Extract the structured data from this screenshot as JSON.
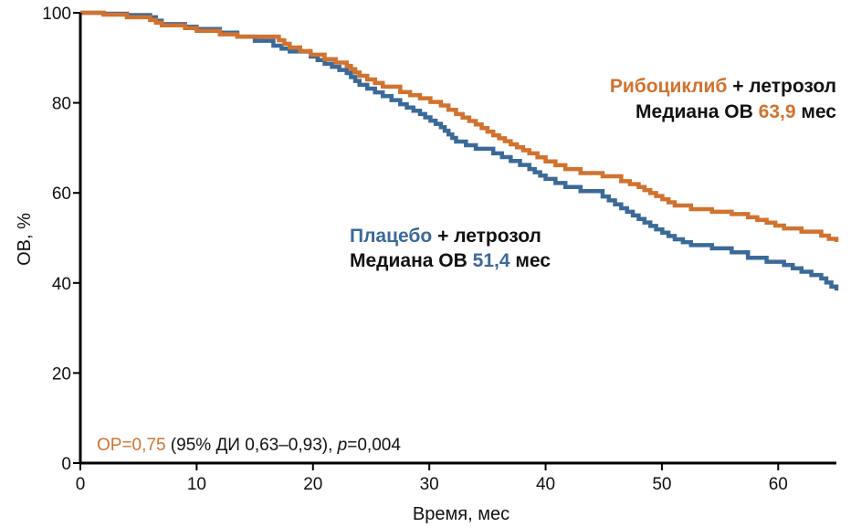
{
  "colors": {
    "ribociclib": "#d2722e",
    "placebo": "#3b6a99",
    "axis": "#000000",
    "text": "#111111"
  },
  "chart_data": {
    "type": "line",
    "subtype": "kaplan-meier step",
    "title": "",
    "xlabel": "Время, мес",
    "ylabel": "ОВ, %",
    "xlim": [
      0,
      65
    ],
    "ylim": [
      0,
      100
    ],
    "xticks": [
      0,
      10,
      20,
      30,
      40,
      50,
      60
    ],
    "yticks": [
      0,
      20,
      40,
      60,
      80,
      100
    ],
    "grid": false,
    "series": [
      {
        "name": "Рибоциклиб + летрозол",
        "color": "#d2722e",
        "x": [
          0,
          2,
          4,
          6,
          7,
          9,
          10,
          12,
          13.5,
          16.6,
          18,
          19.8,
          21,
          22.9,
          24,
          26,
          27.5,
          29.2,
          31,
          32.3,
          34,
          35.5,
          37,
          38.6,
          40,
          41.7,
          43,
          44.9,
          46.5,
          48,
          49.5,
          51.1,
          52.5,
          54.3,
          56,
          57.4,
          59,
          60.5,
          62,
          63.7,
          65
        ],
        "y": [
          100,
          99.6,
          99.0,
          98.4,
          97.2,
          96.6,
          96.0,
          95.2,
          94.7,
          94.7,
          92.3,
          90.7,
          89.7,
          88.2,
          86.0,
          83.6,
          82.4,
          81.0,
          79.4,
          77.5,
          75.2,
          72.8,
          70.8,
          68.8,
          67.0,
          65.3,
          64.4,
          63.7,
          62.6,
          61.3,
          59.3,
          57.2,
          56.4,
          55.8,
          55.3,
          54.6,
          53.4,
          52.1,
          51.4,
          50.5,
          49.1
        ]
      },
      {
        "name": "Плацебо + летрозол",
        "color": "#3b6a99",
        "x": [
          0,
          2,
          4,
          6,
          7,
          9,
          10,
          12,
          13.5,
          15,
          16.6,
          18,
          19.8,
          21,
          22.9,
          24,
          26,
          27.5,
          29.2,
          31,
          32.3,
          34,
          35.5,
          37,
          38.6,
          40,
          41.7,
          43,
          44.9,
          46.5,
          48,
          49.5,
          51.1,
          52.5,
          54.3,
          56,
          57.4,
          59,
          60.5,
          62,
          63.7,
          65
        ],
        "y": [
          100,
          99.8,
          99.5,
          99.0,
          97.5,
          96.9,
          96.4,
          95.6,
          94.7,
          93.8,
          92.7,
          91.4,
          90.3,
          88.7,
          86.6,
          84.0,
          81.5,
          79.7,
          77.5,
          74.6,
          71.4,
          69.8,
          68.8,
          67.1,
          65.3,
          63.1,
          61.3,
          60.4,
          59.2,
          56.6,
          54.2,
          51.9,
          49.7,
          48.4,
          47.7,
          46.8,
          45.6,
          44.7,
          44.0,
          42.5,
          41.0,
          38.3
        ]
      }
    ],
    "annotations": [
      {
        "series": "Рибоциклиб + летрозол",
        "line1_colored": "Рибоциклиб",
        "line1_rest": "+ летрозол",
        "line2_prefix": "Медиана ОВ",
        "line2_value": "63,9",
        "line2_suffix": "мес"
      },
      {
        "series": "Плацебо + летрозол",
        "line1_colored": "Плацебо",
        "line1_rest": "+ летрозол",
        "line2_prefix": "Медиана ОВ",
        "line2_value": "51,4",
        "line2_suffix": "мес"
      }
    ],
    "stats": {
      "hr_label": "ОР=0,75",
      "ci": " (95% ДИ 0,63–0,93), ",
      "p_symbol": "p",
      "p_value": "=0,004"
    }
  }
}
